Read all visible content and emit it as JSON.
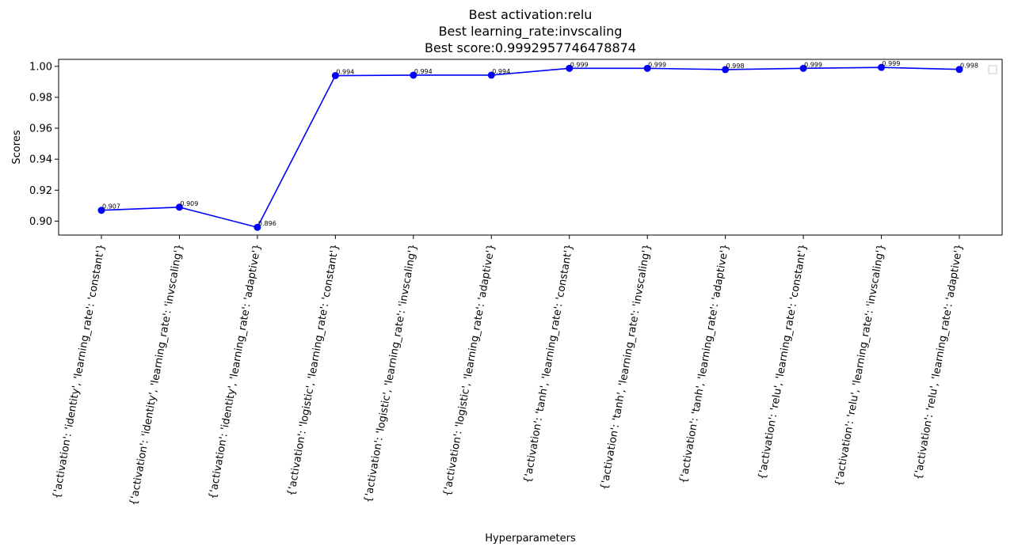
{
  "chart_data": {
    "type": "line",
    "title_lines": [
      "Best activation:relu",
      "Best learning_rate:invscaling",
      "Best score:0.9992957746478874"
    ],
    "xlabel": "Hyperparameters",
    "ylabel": "Scores",
    "ylim": [
      0.891,
      1.0045
    ],
    "yticks": [
      "0.90",
      "0.92",
      "0.94",
      "0.96",
      "0.98",
      "1.00"
    ],
    "ytick_values": [
      0.9,
      0.92,
      0.94,
      0.96,
      0.98,
      1.0
    ],
    "categories": [
      "{'activation': 'identity', 'learning_rate': 'constant'}",
      "{'activation': 'identity', 'learning_rate': 'invscaling'}",
      "{'activation': 'identity', 'learning_rate': 'adaptive'}",
      "{'activation': 'logistic', 'learning_rate': 'constant'}",
      "{'activation': 'logistic', 'learning_rate': 'invscaling'}",
      "{'activation': 'logistic', 'learning_rate': 'adaptive'}",
      "{'activation': 'tanh', 'learning_rate': 'constant'}",
      "{'activation': 'tanh', 'learning_rate': 'invscaling'}",
      "{'activation': 'tanh', 'learning_rate': 'adaptive'}",
      "{'activation': 'relu', 'learning_rate': 'constant'}",
      "{'activation': 'relu', 'learning_rate': 'invscaling'}",
      "{'activation': 'relu', 'learning_rate': 'adaptive'}"
    ],
    "values": [
      0.907,
      0.909,
      0.896,
      0.994,
      0.9943,
      0.9943,
      0.9987,
      0.9987,
      0.9979,
      0.9987,
      0.9993,
      0.998
    ],
    "data_labels": [
      "0.907",
      "0.909",
      "0.896",
      "0.994",
      "0.994",
      "0.994",
      "0.999",
      "0.999",
      "0.998",
      "0.999",
      "0.999",
      "0.998"
    ],
    "line_color": "#0000ff",
    "grid": false,
    "legend": "top-right",
    "legend_entries": []
  }
}
